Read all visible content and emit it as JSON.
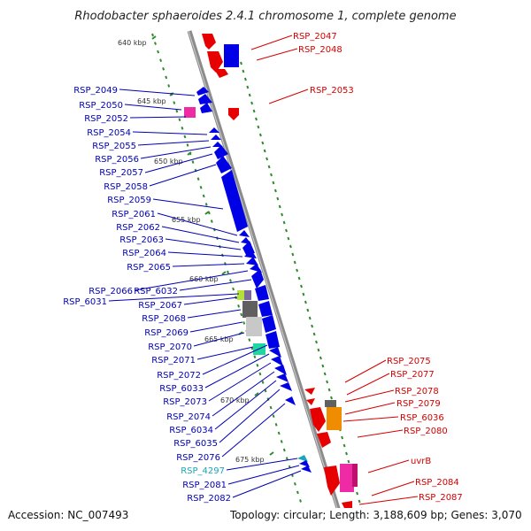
{
  "header": {
    "title": "Rhodobacter sphaeroides 2.4.1 chromosome 1, complete genome"
  },
  "footer": {
    "accession": "Accession: NC_007493",
    "summary": "Topology: circular; Length: 3,188,609 bp; Genes: 3,070"
  },
  "colors": {
    "backbone": "#8c8c8c",
    "scale_dots": "#2e8b2e",
    "forward_genes": "#e60000",
    "reverse_genes": "#0000e6",
    "forward_labels": "#d40000",
    "reverse_labels": "#0000b4",
    "rna_label": "#1aa6b7"
  },
  "scale_ticks": [
    {
      "label": "640 kbp"
    },
    {
      "label": "645 kbp"
    },
    {
      "label": "650 kbp"
    },
    {
      "label": "655 kbp"
    },
    {
      "label": "660 kbp"
    },
    {
      "label": "665 kbp"
    },
    {
      "label": "670 kbp"
    },
    {
      "label": "675 kbp"
    }
  ],
  "forward_gene_labels": [
    "RSP_2047",
    "RSP_2048",
    "RSP_2053",
    "RSP_2075",
    "RSP_2077",
    "RSP_2078",
    "RSP_2079",
    "RSP_6036",
    "RSP_2080",
    "uvrB",
    "RSP_2084",
    "RSP_2087"
  ],
  "reverse_gene_labels": [
    "RSP_2049",
    "RSP_2050",
    "RSP_2052",
    "RSP_2054",
    "RSP_2055",
    "RSP_2056",
    "RSP_2057",
    "RSP_2058",
    "RSP_2059",
    "RSP_2061",
    "RSP_2062",
    "RSP_2063",
    "RSP_2064",
    "RSP_2065",
    "RSP_2066",
    "RSP_6032",
    "RSP_6031",
    "RSP_2067",
    "RSP_2068",
    "RSP_2069",
    "RSP_2070",
    "RSP_2071",
    "RSP_2072",
    "RSP_6033",
    "RSP_2073",
    "RSP_2074",
    "RSP_6034",
    "RSP_6035",
    "RSP_2076",
    "RSP_4297",
    "RSP_2081",
    "RSP_2082"
  ]
}
